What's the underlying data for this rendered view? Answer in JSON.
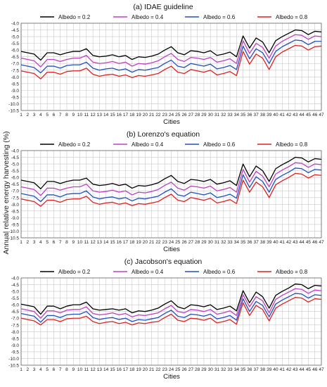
{
  "figure": {
    "ylabel": "Annual relative energy harvesting (%)"
  },
  "chart_data": [
    {
      "type": "line",
      "title": "(a) IDAE guideline",
      "xlabel": "Cities",
      "ylabel": "",
      "x": [
        1,
        2,
        3,
        4,
        5,
        6,
        7,
        8,
        9,
        10,
        11,
        12,
        13,
        14,
        15,
        16,
        17,
        18,
        19,
        20,
        21,
        22,
        23,
        24,
        25,
        26,
        27,
        28,
        29,
        30,
        31,
        32,
        33,
        34,
        35,
        36,
        37,
        38,
        39,
        40,
        41,
        42,
        43,
        44,
        45,
        46,
        47
      ],
      "yticks": [
        "-4.0",
        "-4.5",
        "-5.0",
        "-5.5",
        "-6.0",
        "-6.5",
        "-7.0",
        "-7.5",
        "-8.0",
        "-8.5",
        "-9.0",
        "-9.5",
        "-10.0",
        "-10.5"
      ],
      "ylim": [
        -10.5,
        -4.0
      ],
      "grid": true,
      "legend": "top",
      "series": [
        {
          "name": "Albedo = 0.2",
          "color": "#000000",
          "values": [
            -6.1,
            -6.2,
            -6.3,
            -6.75,
            -6.2,
            -6.2,
            -6.35,
            -6.2,
            -6.1,
            -6.1,
            -5.9,
            -6.4,
            -6.5,
            -6.45,
            -6.35,
            -6.5,
            -6.4,
            -6.7,
            -6.5,
            -6.55,
            -6.45,
            -6.3,
            -6.0,
            -5.75,
            -6.2,
            -6.35,
            -6.05,
            -6.1,
            -6.2,
            -6.05,
            -6.4,
            -6.3,
            -6.15,
            -6.5,
            -4.95,
            -5.85,
            -5.1,
            -5.4,
            -6.2,
            -5.3,
            -5.0,
            -4.75,
            -4.5,
            -4.55,
            -4.85,
            -4.6,
            -4.65
          ]
        },
        {
          "name": "Albedo = 0.4",
          "color": "#c040c0",
          "values": [
            -6.6,
            -6.7,
            -6.8,
            -7.25,
            -6.7,
            -6.7,
            -6.85,
            -6.7,
            -6.6,
            -6.6,
            -6.4,
            -6.9,
            -7.0,
            -6.95,
            -6.85,
            -7.0,
            -6.9,
            -7.2,
            -7.0,
            -7.05,
            -6.95,
            -6.8,
            -6.5,
            -6.25,
            -6.7,
            -6.85,
            -6.55,
            -6.6,
            -6.7,
            -6.55,
            -6.9,
            -6.8,
            -6.65,
            -7.0,
            -5.3,
            -6.25,
            -5.5,
            -5.8,
            -6.6,
            -5.7,
            -5.35,
            -5.1,
            -4.85,
            -4.9,
            -5.2,
            -4.95,
            -5.0
          ]
        },
        {
          "name": "Albedo = 0.6",
          "color": "#2050c0",
          "values": [
            -7.1,
            -7.2,
            -7.3,
            -7.7,
            -7.2,
            -7.2,
            -7.35,
            -7.15,
            -7.1,
            -7.1,
            -6.9,
            -7.35,
            -7.5,
            -7.4,
            -7.35,
            -7.5,
            -7.4,
            -7.65,
            -7.45,
            -7.5,
            -7.4,
            -7.3,
            -7.0,
            -6.75,
            -7.2,
            -7.3,
            -7.0,
            -7.1,
            -7.2,
            -7.05,
            -7.4,
            -7.3,
            -7.15,
            -7.45,
            -5.7,
            -6.65,
            -5.9,
            -6.2,
            -7.0,
            -6.1,
            -5.75,
            -5.5,
            -5.25,
            -5.3,
            -5.6,
            -5.35,
            -5.35
          ]
        },
        {
          "name": "Albedo = 0.8",
          "color": "#e02020",
          "values": [
            -7.55,
            -7.65,
            -7.75,
            -8.15,
            -7.65,
            -7.65,
            -7.8,
            -7.6,
            -7.55,
            -7.55,
            -7.35,
            -7.8,
            -7.95,
            -7.85,
            -7.8,
            -7.95,
            -7.85,
            -8.05,
            -7.9,
            -7.95,
            -7.85,
            -7.75,
            -7.45,
            -7.2,
            -7.65,
            -7.75,
            -7.45,
            -7.55,
            -7.65,
            -7.5,
            -7.85,
            -7.75,
            -7.6,
            -7.9,
            -6.1,
            -7.05,
            -6.3,
            -6.6,
            -7.45,
            -6.5,
            -6.15,
            -5.9,
            -5.65,
            -5.7,
            -6.0,
            -5.75,
            -5.7
          ]
        }
      ]
    },
    {
      "type": "line",
      "title": "(b) Lorenzo's equation",
      "xlabel": "Cities",
      "ylabel": "",
      "x": [
        1,
        2,
        3,
        4,
        5,
        6,
        7,
        8,
        9,
        10,
        11,
        12,
        13,
        14,
        15,
        16,
        17,
        18,
        19,
        20,
        21,
        22,
        23,
        24,
        25,
        26,
        27,
        28,
        29,
        30,
        31,
        32,
        33,
        34,
        35,
        36,
        37,
        38,
        39,
        40,
        41,
        42,
        43,
        44,
        45,
        46,
        47
      ],
      "yticks": [
        "-4.0",
        "-4.5",
        "-5.0",
        "-5.5",
        "-6.0",
        "-6.5",
        "-7.0",
        "-7.5",
        "-8.0",
        "-8.5",
        "-9.0",
        "-9.5",
        "-10.0",
        "-10.5"
      ],
      "ylim": [
        -10.5,
        -4.0
      ],
      "grid": true,
      "legend": "top",
      "series": [
        {
          "name": "Albedo = 0.2",
          "color": "#000000",
          "values": [
            -6.2,
            -6.3,
            -6.4,
            -6.85,
            -6.3,
            -6.3,
            -6.45,
            -6.3,
            -6.2,
            -6.2,
            -6.05,
            -6.5,
            -6.6,
            -6.55,
            -6.45,
            -6.6,
            -6.5,
            -6.8,
            -6.6,
            -6.65,
            -6.55,
            -6.4,
            -6.1,
            -5.85,
            -6.3,
            -6.45,
            -6.15,
            -6.2,
            -6.3,
            -6.15,
            -6.5,
            -6.4,
            -6.25,
            -6.6,
            -5.0,
            -5.95,
            -5.15,
            -5.5,
            -6.3,
            -5.35,
            -5.05,
            -4.8,
            -4.5,
            -4.55,
            -4.85,
            -4.6,
            -4.65
          ]
        },
        {
          "name": "Albedo = 0.4",
          "color": "#c040c0",
          "values": [
            -6.7,
            -6.8,
            -6.9,
            -7.35,
            -6.8,
            -6.8,
            -6.95,
            -6.8,
            -6.7,
            -6.7,
            -6.5,
            -7.0,
            -7.1,
            -7.05,
            -6.95,
            -7.1,
            -7.0,
            -7.3,
            -7.1,
            -7.15,
            -7.05,
            -6.9,
            -6.6,
            -6.35,
            -6.8,
            -6.95,
            -6.65,
            -6.7,
            -6.8,
            -6.65,
            -7.0,
            -6.9,
            -6.75,
            -7.1,
            -5.4,
            -6.35,
            -5.55,
            -5.9,
            -6.7,
            -5.75,
            -5.45,
            -5.2,
            -4.9,
            -4.95,
            -5.25,
            -5.0,
            -5.05
          ]
        },
        {
          "name": "Albedo = 0.6",
          "color": "#2050c0",
          "values": [
            -7.2,
            -7.3,
            -7.4,
            -7.8,
            -7.3,
            -7.3,
            -7.45,
            -7.25,
            -7.2,
            -7.2,
            -7.0,
            -7.45,
            -7.6,
            -7.5,
            -7.45,
            -7.6,
            -7.5,
            -7.75,
            -7.55,
            -7.6,
            -7.5,
            -7.4,
            -7.1,
            -6.85,
            -7.3,
            -7.4,
            -7.1,
            -7.2,
            -7.3,
            -7.15,
            -7.5,
            -7.4,
            -7.25,
            -7.55,
            -5.8,
            -6.75,
            -5.95,
            -6.3,
            -7.1,
            -6.15,
            -5.85,
            -5.6,
            -5.3,
            -5.35,
            -5.65,
            -5.4,
            -5.45
          ]
        },
        {
          "name": "Albedo = 0.8",
          "color": "#e02020",
          "values": [
            -7.6,
            -7.7,
            -7.8,
            -8.15,
            -7.7,
            -7.7,
            -7.85,
            -7.65,
            -7.6,
            -7.6,
            -7.4,
            -7.85,
            -8.0,
            -7.9,
            -7.85,
            -8.0,
            -7.9,
            -8.1,
            -7.95,
            -8.0,
            -7.9,
            -7.8,
            -7.5,
            -7.25,
            -7.7,
            -7.8,
            -7.5,
            -7.6,
            -7.7,
            -7.55,
            -7.9,
            -7.8,
            -7.65,
            -7.95,
            -6.2,
            -7.1,
            -6.35,
            -6.7,
            -7.5,
            -6.55,
            -6.25,
            -6.0,
            -5.7,
            -5.75,
            -6.05,
            -5.8,
            -5.85
          ]
        }
      ]
    },
    {
      "type": "line",
      "title": "(c) Jacobson's equation",
      "xlabel": "Cities",
      "ylabel": "",
      "x": [
        1,
        2,
        3,
        4,
        5,
        6,
        7,
        8,
        9,
        10,
        11,
        12,
        13,
        14,
        15,
        16,
        17,
        18,
        19,
        20,
        21,
        22,
        23,
        24,
        25,
        26,
        27,
        28,
        29,
        30,
        31,
        32,
        33,
        34,
        35,
        36,
        37,
        38,
        39,
        40,
        41,
        42,
        43,
        44,
        45,
        46,
        47
      ],
      "yticks": [
        "-4.0",
        "-4.5",
        "-5.0",
        "-5.5",
        "-6.0",
        "-6.5",
        "-7.0",
        "-7.5",
        "-8.0",
        "-8.5",
        "-9.0",
        "-9.5",
        "-10.0",
        "-10.5"
      ],
      "ylim": [
        -10.5,
        -4.0
      ],
      "grid": true,
      "legend": "top",
      "series": [
        {
          "name": "Albedo = 0.2",
          "color": "#000000",
          "values": [
            -5.95,
            -6.05,
            -6.15,
            -6.7,
            -6.1,
            -6.1,
            -6.3,
            -6.1,
            -6.0,
            -6.0,
            -5.8,
            -6.3,
            -6.4,
            -6.35,
            -6.3,
            -6.4,
            -6.3,
            -6.6,
            -6.45,
            -6.5,
            -6.4,
            -6.25,
            -5.95,
            -5.7,
            -6.15,
            -6.3,
            -6.0,
            -6.05,
            -6.15,
            -6.0,
            -6.35,
            -6.25,
            -6.1,
            -6.45,
            -4.95,
            -5.85,
            -5.05,
            -5.4,
            -6.25,
            -5.3,
            -5.0,
            -4.75,
            -4.45,
            -4.5,
            -4.8,
            -4.55,
            -4.6
          ]
        },
        {
          "name": "Albedo = 0.4",
          "color": "#c040c0",
          "values": [
            -6.3,
            -6.4,
            -6.5,
            -7.0,
            -6.45,
            -6.45,
            -6.6,
            -6.4,
            -6.35,
            -6.35,
            -6.15,
            -6.65,
            -6.75,
            -6.7,
            -6.6,
            -6.75,
            -6.65,
            -6.9,
            -6.75,
            -6.8,
            -6.7,
            -6.6,
            -6.3,
            -6.05,
            -6.5,
            -6.6,
            -6.35,
            -6.4,
            -6.5,
            -6.35,
            -6.7,
            -6.6,
            -6.45,
            -6.8,
            -5.25,
            -6.15,
            -5.4,
            -5.7,
            -6.6,
            -5.6,
            -5.3,
            -5.05,
            -4.8,
            -4.85,
            -5.15,
            -4.9,
            -4.95
          ]
        },
        {
          "name": "Albedo = 0.6",
          "color": "#2050c0",
          "values": [
            -6.65,
            -6.75,
            -6.85,
            -7.3,
            -6.8,
            -6.8,
            -6.95,
            -6.75,
            -6.7,
            -6.7,
            -6.5,
            -6.95,
            -7.1,
            -7.0,
            -6.95,
            -7.1,
            -7.0,
            -7.25,
            -7.1,
            -7.15,
            -7.05,
            -6.95,
            -6.65,
            -6.4,
            -6.85,
            -6.95,
            -6.7,
            -6.75,
            -6.85,
            -6.7,
            -7.05,
            -6.95,
            -6.8,
            -7.15,
            -5.55,
            -6.5,
            -5.75,
            -6.05,
            -6.9,
            -5.95,
            -5.65,
            -5.4,
            -5.15,
            -5.2,
            -5.5,
            -5.25,
            -5.3
          ]
        },
        {
          "name": "Albedo = 0.8",
          "color": "#e02020",
          "values": [
            -7.0,
            -7.1,
            -7.2,
            -7.5,
            -7.1,
            -7.1,
            -7.25,
            -7.05,
            -7.0,
            -7.0,
            -6.85,
            -7.25,
            -7.4,
            -7.3,
            -7.25,
            -7.4,
            -7.3,
            -7.5,
            -7.35,
            -7.4,
            -7.3,
            -7.25,
            -6.95,
            -6.7,
            -7.15,
            -7.25,
            -7.0,
            -7.05,
            -7.15,
            -7.0,
            -7.35,
            -7.25,
            -7.1,
            -7.45,
            -5.85,
            -6.8,
            -6.05,
            -6.35,
            -7.2,
            -6.25,
            -5.95,
            -5.7,
            -5.45,
            -5.5,
            -5.8,
            -5.55,
            -5.6
          ]
        }
      ]
    }
  ]
}
